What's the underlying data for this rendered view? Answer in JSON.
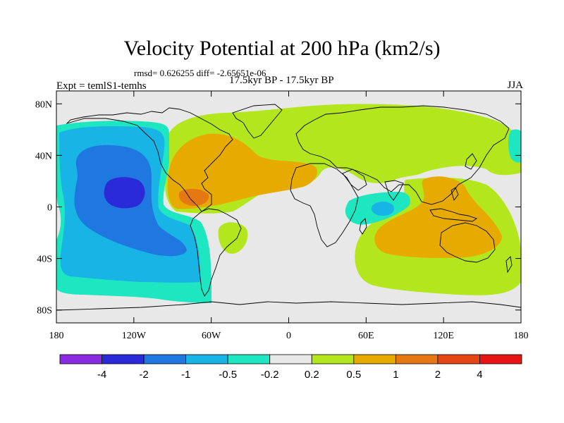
{
  "title": "Velocity Potential at 200 hPa (km2/s)",
  "stats": "rmsd= 0.626255 diff= -2.65651e-06",
  "period": "17.5kyr BP - 17.5kyr BP",
  "experiment": "Expt = temlS1-temhs",
  "season": "JJA",
  "map": {
    "projection": "cylindrical-equidistant",
    "lon_range": [
      -180,
      180
    ],
    "lat_range": [
      -90,
      90
    ],
    "background_color": "#e8e8e8",
    "lat_ticks": [
      {
        "lat": 80,
        "label": "80N"
      },
      {
        "lat": 40,
        "label": "40N"
      },
      {
        "lat": 0,
        "label": "0"
      },
      {
        "lat": -40,
        "label": "40S"
      },
      {
        "lat": -80,
        "label": "80S"
      }
    ],
    "lon_ticks": [
      {
        "lon": -180,
        "label": "180"
      },
      {
        "lon": -120,
        "label": "120W"
      },
      {
        "lon": -60,
        "label": "60W"
      },
      {
        "lon": 0,
        "label": "0"
      },
      {
        "lon": 60,
        "label": "60E"
      },
      {
        "lon": 120,
        "label": "120E"
      },
      {
        "lon": 180,
        "label": "180"
      }
    ]
  },
  "colorbar": {
    "colors": [
      "#8a2be2",
      "#2a2ad8",
      "#1e78e0",
      "#19b4e6",
      "#1ee6c0",
      "#e8e8e8",
      "#b4e61e",
      "#e6aa00",
      "#e67814",
      "#e64614",
      "#e61414"
    ],
    "labels": [
      "-4",
      "-2",
      "-1",
      "-0.5",
      "-0.2",
      "0.2",
      "0.5",
      "1",
      "2",
      "4"
    ]
  }
}
